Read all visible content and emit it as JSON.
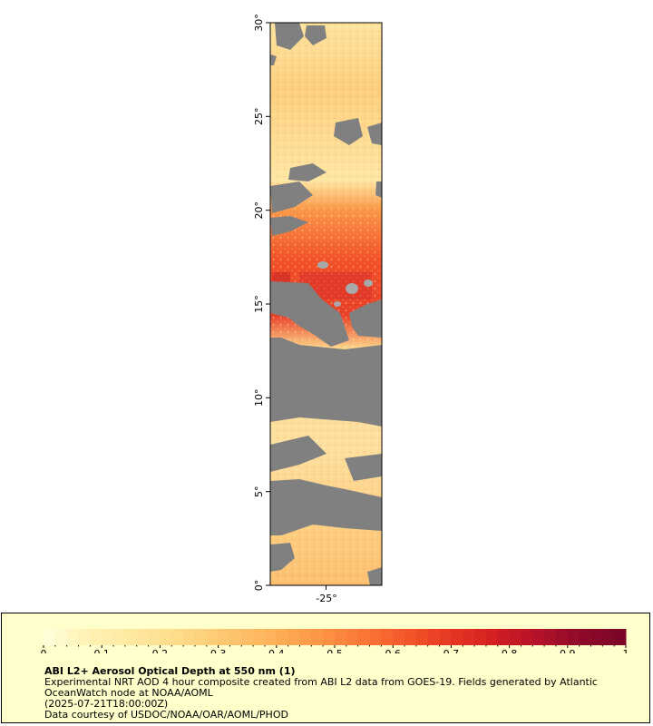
{
  "map": {
    "lat_labels": [
      "0°",
      "5°",
      "10°",
      "15°",
      "20°",
      "25°",
      "30°"
    ],
    "lon_labels": [
      "-25°"
    ],
    "land_mask_color": "#808080",
    "background_color": "#ffffff"
  },
  "legend": {
    "title": "ABI L2+ Aerosol Optical Depth at 550 nm (1)",
    "description": "Experimental NRT AOD 4 hour composite created from ABI L2 data from GOES-19. Fields generated by Atlantic OceanWatch node at NOAA/AOML",
    "timestamp": "(2025-07-21T18:00:00Z)",
    "credit": "Data courtesy of USDOC/NOAA/OAR/AOML/PHOD",
    "background_color": "#ffffcc",
    "colorbar": {
      "min": 0,
      "max": 1,
      "tick_labels": [
        "0",
        "0.1",
        "0.2",
        "0.3",
        "0.4",
        "0.5",
        "0.6",
        "0.7",
        "0.8",
        "0.9",
        "1"
      ],
      "colors": [
        "#ffffdd",
        "#fff2b3",
        "#fee8a0",
        "#fedc8a",
        "#fdc872",
        "#fdb45c",
        "#fc9a48",
        "#fb7c38",
        "#f55a2c",
        "#e83a24",
        "#d42020",
        "#b5122a",
        "#8f0a2a",
        "#7a0426"
      ]
    }
  },
  "chart_data": {
    "type": "heatmap",
    "variable": "ABI L2+ Aerosol Optical Depth at 550 nm (1)",
    "lat_range": [
      0,
      30
    ],
    "lon_center_label": "-25°",
    "value_range": [
      0,
      1
    ],
    "approx_aod_by_latitude_band": [
      {
        "lat": [
          25,
          30
        ],
        "aod": 0.25
      },
      {
        "lat": [
          20,
          25
        ],
        "aod": 0.2
      },
      {
        "lat": [
          17,
          20
        ],
        "aod": 0.55
      },
      {
        "lat": [
          13,
          17
        ],
        "aod": 0.7
      },
      {
        "lat": [
          8,
          13
        ],
        "aod": 0.2
      },
      {
        "lat": [
          0,
          8
        ],
        "aod": 0.25
      }
    ]
  }
}
